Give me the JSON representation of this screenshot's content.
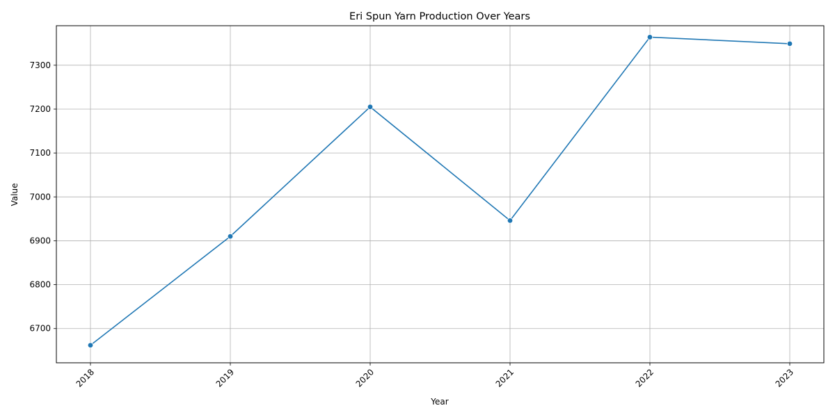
{
  "chart_data": {
    "type": "line",
    "title": "Eri Spun Yarn Production Over Years",
    "xlabel": "Year",
    "ylabel": "Value",
    "x": [
      "2018",
      "2019",
      "2020",
      "2021",
      "2022",
      "2023"
    ],
    "series": [
      {
        "values": [
          6662,
          6910,
          7205,
          6946,
          7364,
          7349
        ],
        "color": "#1f77b4"
      }
    ],
    "yticks": [
      6700,
      6800,
      6900,
      7000,
      7100,
      7200,
      7300
    ],
    "ylim": [
      6622,
      7390
    ],
    "grid": true,
    "x_tick_rotation": 45,
    "marker": "circle"
  }
}
